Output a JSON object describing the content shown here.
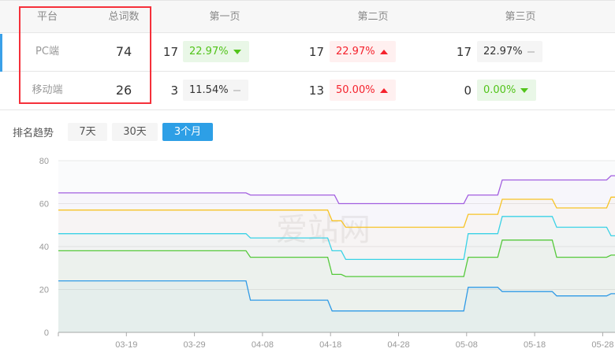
{
  "table": {
    "headers": [
      "平台",
      "总词数",
      "第一页",
      "第二页",
      "第三页"
    ],
    "rows": [
      {
        "platform": "PC端",
        "total": "74",
        "pages": [
          {
            "count": "17",
            "percent": "22.97%",
            "trend": "down"
          },
          {
            "count": "17",
            "percent": "22.97%",
            "trend": "up"
          },
          {
            "count": "17",
            "percent": "22.97%",
            "trend": "flat"
          }
        ]
      },
      {
        "platform": "移动端",
        "total": "26",
        "pages": [
          {
            "count": "3",
            "percent": "11.54%",
            "trend": "flat"
          },
          {
            "count": "13",
            "percent": "50.00%",
            "trend": "up"
          },
          {
            "count": "0",
            "percent": "0.00%",
            "trend": "down"
          }
        ]
      }
    ]
  },
  "trend": {
    "label": "排名趋势",
    "ranges": [
      "7天",
      "30天",
      "3个月"
    ],
    "active": "3个月"
  },
  "colors": {
    "up": "#f5222d",
    "down": "#52c41a",
    "accent": "#2d9fe6",
    "highlight_box": "#f5303a"
  },
  "chart_data": {
    "type": "line",
    "ylim": [
      0,
      80
    ],
    "yticks": [
      0,
      20,
      40,
      60,
      80
    ],
    "xticks": [
      "03-19",
      "03-29",
      "04-08",
      "04-18",
      "04-28",
      "05-08",
      "05-18",
      "05-28"
    ],
    "xlim": [
      "03-09",
      "05-31"
    ],
    "grid": true,
    "watermark": "爱站网",
    "series": [
      {
        "color": "#a25ee0",
        "steps": [
          [
            "03-09",
            65
          ],
          [
            "04-06",
            64
          ],
          [
            "04-19",
            60
          ],
          [
            "05-08",
            64
          ],
          [
            "05-13",
            71
          ],
          [
            "05-29",
            73
          ]
        ]
      },
      {
        "color": "#f7c325",
        "steps": [
          [
            "03-09",
            57
          ],
          [
            "04-18",
            52
          ],
          [
            "04-20",
            49
          ],
          [
            "05-08",
            55
          ],
          [
            "05-13",
            62
          ],
          [
            "05-21",
            58
          ],
          [
            "05-29",
            63
          ]
        ]
      },
      {
        "color": "#3ad2e6",
        "steps": [
          [
            "03-09",
            46
          ],
          [
            "04-06",
            44
          ],
          [
            "04-18",
            38
          ],
          [
            "04-20",
            34
          ],
          [
            "05-08",
            46
          ],
          [
            "05-13",
            54
          ],
          [
            "05-21",
            49
          ],
          [
            "05-29",
            45
          ]
        ]
      },
      {
        "color": "#55c93b",
        "steps": [
          [
            "03-09",
            38
          ],
          [
            "04-06",
            35
          ],
          [
            "04-18",
            27
          ],
          [
            "04-20",
            26
          ],
          [
            "05-08",
            35
          ],
          [
            "05-13",
            43
          ],
          [
            "05-21",
            35
          ],
          [
            "05-29",
            36
          ]
        ]
      },
      {
        "color": "#2f9ae6",
        "steps": [
          [
            "03-09",
            24
          ],
          [
            "04-06",
            15
          ],
          [
            "04-18",
            10
          ],
          [
            "05-08",
            21
          ],
          [
            "05-13",
            19
          ],
          [
            "05-21",
            17
          ],
          [
            "05-29",
            18
          ]
        ]
      }
    ]
  }
}
